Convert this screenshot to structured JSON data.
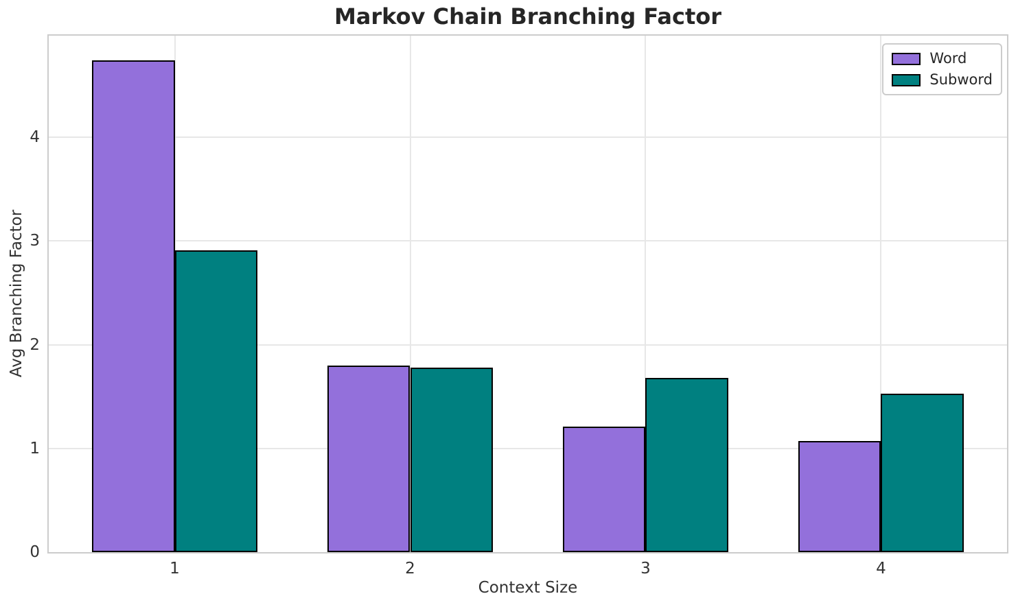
{
  "title": "Markov Chain Branching Factor",
  "chart_data": {
    "type": "bar",
    "title": "Markov Chain Branching Factor",
    "xlabel": "Context Size",
    "ylabel": "Avg Branching Factor",
    "categories": [
      "1",
      "2",
      "3",
      "4"
    ],
    "x_positions": [
      1,
      2,
      3,
      4
    ],
    "series": [
      {
        "name": "Word",
        "color": "#9370DB",
        "values": [
          4.74,
          1.8,
          1.21,
          1.07
        ]
      },
      {
        "name": "Subword",
        "color": "#008080",
        "values": [
          2.91,
          1.78,
          1.68,
          1.53
        ]
      }
    ],
    "bar_width": 0.35,
    "xlim": [
      0.465,
      4.535
    ],
    "ylim": [
      0,
      4.98
    ],
    "yticks": [
      "0",
      "1",
      "2",
      "3",
      "4"
    ],
    "ytick_values": [
      0,
      1,
      2,
      3,
      4
    ],
    "grid": true,
    "legend_position": "upper right"
  },
  "colors": {
    "background": "#ffffff",
    "grid": "#e7e7e7",
    "spine": "#cccccc",
    "tick_text": "#333333",
    "title_text": "#262626",
    "bar_edge": "#000000"
  }
}
